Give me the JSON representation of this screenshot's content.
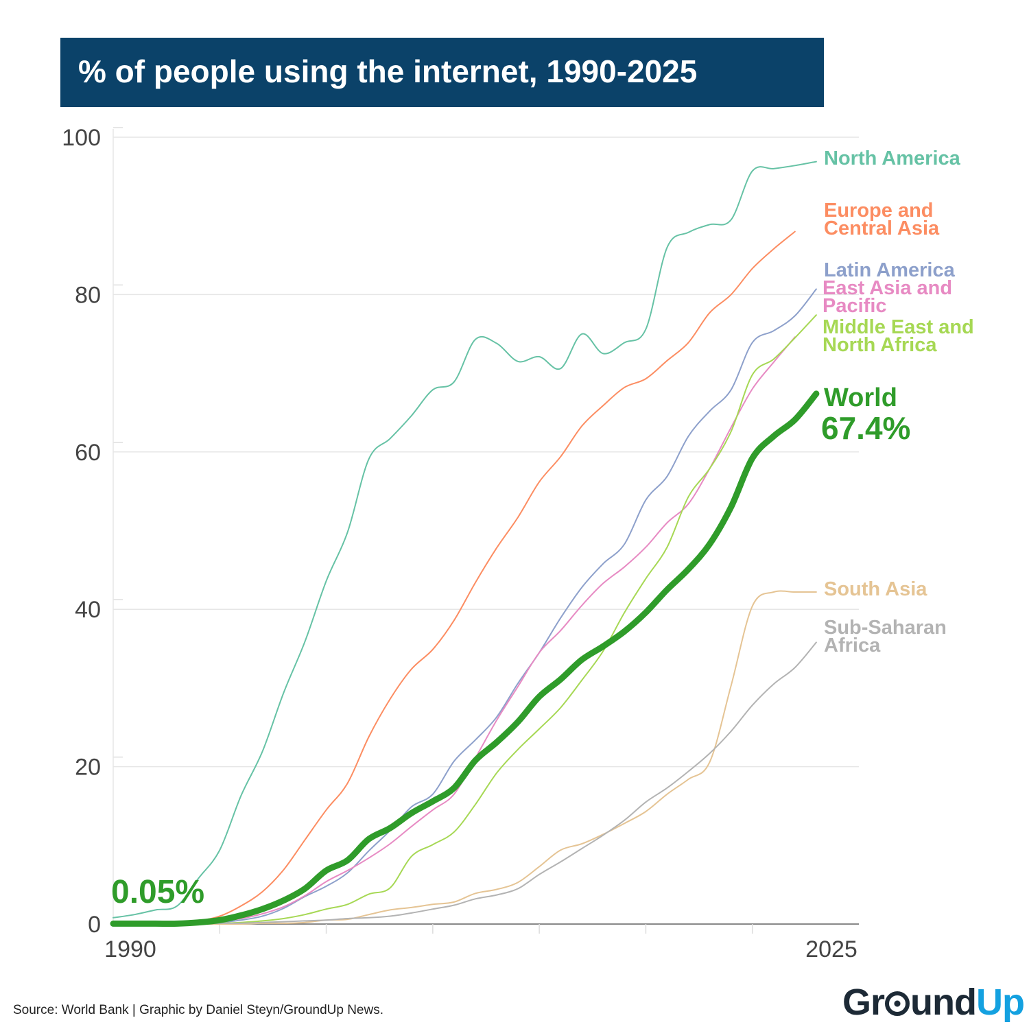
{
  "title": "% of people using the internet, 1990-2025",
  "source": "Source: World Bank | Graphic by Daniel Steyn/GroundUp News.",
  "logo": {
    "part1": "Gr",
    "part2": "und",
    "part3": "Up"
  },
  "chart_data": {
    "type": "line",
    "title": "% of people using the internet, 1990-2025",
    "xlabel": "",
    "ylabel": "",
    "xlim": [
      1990,
      2025
    ],
    "ylim": [
      0,
      100
    ],
    "x_tick_labels": [
      "1990",
      "2025"
    ],
    "y_ticks": [
      0,
      20,
      40,
      60,
      80,
      100
    ],
    "y_tick_labels": [
      "0",
      "20",
      "40",
      "60",
      "80",
      "100"
    ],
    "grid": true,
    "annotations": {
      "start": "0.05%",
      "end": "67.4%"
    },
    "x": [
      1990,
      1991,
      1992,
      1993,
      1994,
      1995,
      1996,
      1997,
      1998,
      1999,
      2000,
      2001,
      2002,
      2003,
      2004,
      2005,
      2006,
      2007,
      2008,
      2009,
      2010,
      2011,
      2012,
      2013,
      2014,
      2015,
      2016,
      2017,
      2018,
      2019,
      2020,
      2021,
      2022,
      2023,
      2024,
      2025
    ],
    "series": [
      {
        "name": "North America",
        "label": "North America",
        "color": "#66c2a5",
        "width": 2,
        "values": [
          0.8,
          1.2,
          1.8,
          2.3,
          5.8,
          9.4,
          16.3,
          21.9,
          29.4,
          35.9,
          43.6,
          49.8,
          59.1,
          61.7,
          64.6,
          67.9,
          68.9,
          74.3,
          73.8,
          71.5,
          72.1,
          70.6,
          75.0,
          72.5,
          73.9,
          75.6,
          86.0,
          87.9,
          88.9,
          89.5,
          95.7,
          96.0,
          96.4,
          96.9,
          null,
          null
        ]
      },
      {
        "name": "Europe and Central Asia",
        "label": "Europe and\nCentral Asia",
        "color": "#fc8d62",
        "width": 2,
        "values": [
          0.0,
          0.1,
          0.1,
          0.2,
          0.4,
          1.0,
          2.3,
          4.1,
          6.9,
          10.7,
          14.5,
          17.9,
          23.8,
          28.6,
          32.4,
          34.9,
          38.6,
          43.4,
          47.8,
          51.7,
          56.2,
          59.4,
          63.3,
          65.9,
          68.2,
          69.3,
          71.6,
          73.9,
          77.7,
          80.0,
          83.3,
          85.8,
          88.0,
          null,
          null,
          null
        ]
      },
      {
        "name": "Latin America",
        "label": "Latin America",
        "color": "#8da0cb",
        "width": 2,
        "values": [
          0.0,
          0.0,
          0.0,
          0.0,
          0.1,
          0.2,
          0.5,
          1.0,
          2.0,
          3.5,
          4.8,
          6.5,
          9.3,
          11.9,
          14.9,
          16.5,
          20.7,
          23.4,
          26.3,
          30.6,
          34.5,
          38.9,
          42.8,
          45.8,
          48.3,
          53.9,
          56.9,
          62.0,
          65.2,
          67.9,
          73.9,
          75.4,
          77.3,
          80.7,
          null,
          null
        ]
      },
      {
        "name": "East Asia and Pacific",
        "label": "East Asia and\nPacific",
        "color": "#e78ac3",
        "width": 2,
        "values": [
          0.0,
          0.0,
          0.0,
          0.0,
          0.1,
          0.4,
          0.7,
          1.3,
          2.2,
          3.6,
          5.4,
          6.8,
          8.4,
          10.2,
          12.4,
          14.5,
          16.5,
          21.1,
          25.9,
          30.2,
          34.5,
          37.3,
          40.5,
          43.3,
          45.4,
          47.9,
          51.0,
          53.4,
          57.9,
          63.1,
          68.0,
          71.4,
          74.6,
          null,
          null,
          null
        ]
      },
      {
        "name": "Middle East and North Africa",
        "label": "Middle East and\nNorth Africa",
        "color": "#a6d854",
        "width": 2,
        "values": [
          0.0,
          0.0,
          0.0,
          0.0,
          0.0,
          0.1,
          0.2,
          0.4,
          0.7,
          1.2,
          1.9,
          2.5,
          3.8,
          4.6,
          8.6,
          10.1,
          11.7,
          15.2,
          19.2,
          22.2,
          24.8,
          27.5,
          31.0,
          34.7,
          39.6,
          43.9,
          47.9,
          54.3,
          57.9,
          62.6,
          69.8,
          71.8,
          74.5,
          77.4,
          null,
          null
        ]
      },
      {
        "name": "South Asia",
        "label": "South Asia",
        "color": "#e5c494",
        "width": 2,
        "values": [
          0.0,
          0.0,
          0.0,
          0.0,
          0.0,
          0.0,
          0.0,
          0.1,
          0.1,
          0.2,
          0.5,
          0.6,
          1.2,
          1.8,
          2.1,
          2.5,
          2.8,
          3.9,
          4.4,
          5.3,
          7.3,
          9.4,
          10.2,
          11.4,
          12.8,
          14.3,
          16.5,
          18.4,
          20.6,
          30.3,
          40.4,
          42.2,
          42.2,
          42.2,
          null,
          null
        ]
      },
      {
        "name": "Sub-Saharan Africa",
        "label": "Sub-Saharan\nAfrica",
        "color": "#b3b3b3",
        "width": 2,
        "values": [
          0.0,
          0.0,
          0.0,
          0.0,
          0.0,
          0.1,
          0.1,
          0.2,
          0.3,
          0.4,
          0.5,
          0.7,
          0.8,
          1.0,
          1.4,
          1.9,
          2.4,
          3.2,
          3.7,
          4.5,
          6.3,
          7.9,
          9.6,
          11.3,
          13.2,
          15.5,
          17.3,
          19.4,
          21.7,
          24.5,
          27.8,
          30.5,
          32.6,
          35.8,
          null,
          null
        ]
      },
      {
        "name": "World",
        "label": "World",
        "color": "#2f9c2a",
        "width": 9,
        "values": [
          0.05,
          0.05,
          0.05,
          0.05,
          0.2,
          0.5,
          1.1,
          1.9,
          3.0,
          4.5,
          6.8,
          8.1,
          10.8,
          12.2,
          14.1,
          15.6,
          17.3,
          20.8,
          23.1,
          25.7,
          28.9,
          31.1,
          33.6,
          35.3,
          37.2,
          39.6,
          42.5,
          45.1,
          48.3,
          53.0,
          59.2,
          62.0,
          64.1,
          67.4,
          null,
          null
        ]
      }
    ]
  }
}
